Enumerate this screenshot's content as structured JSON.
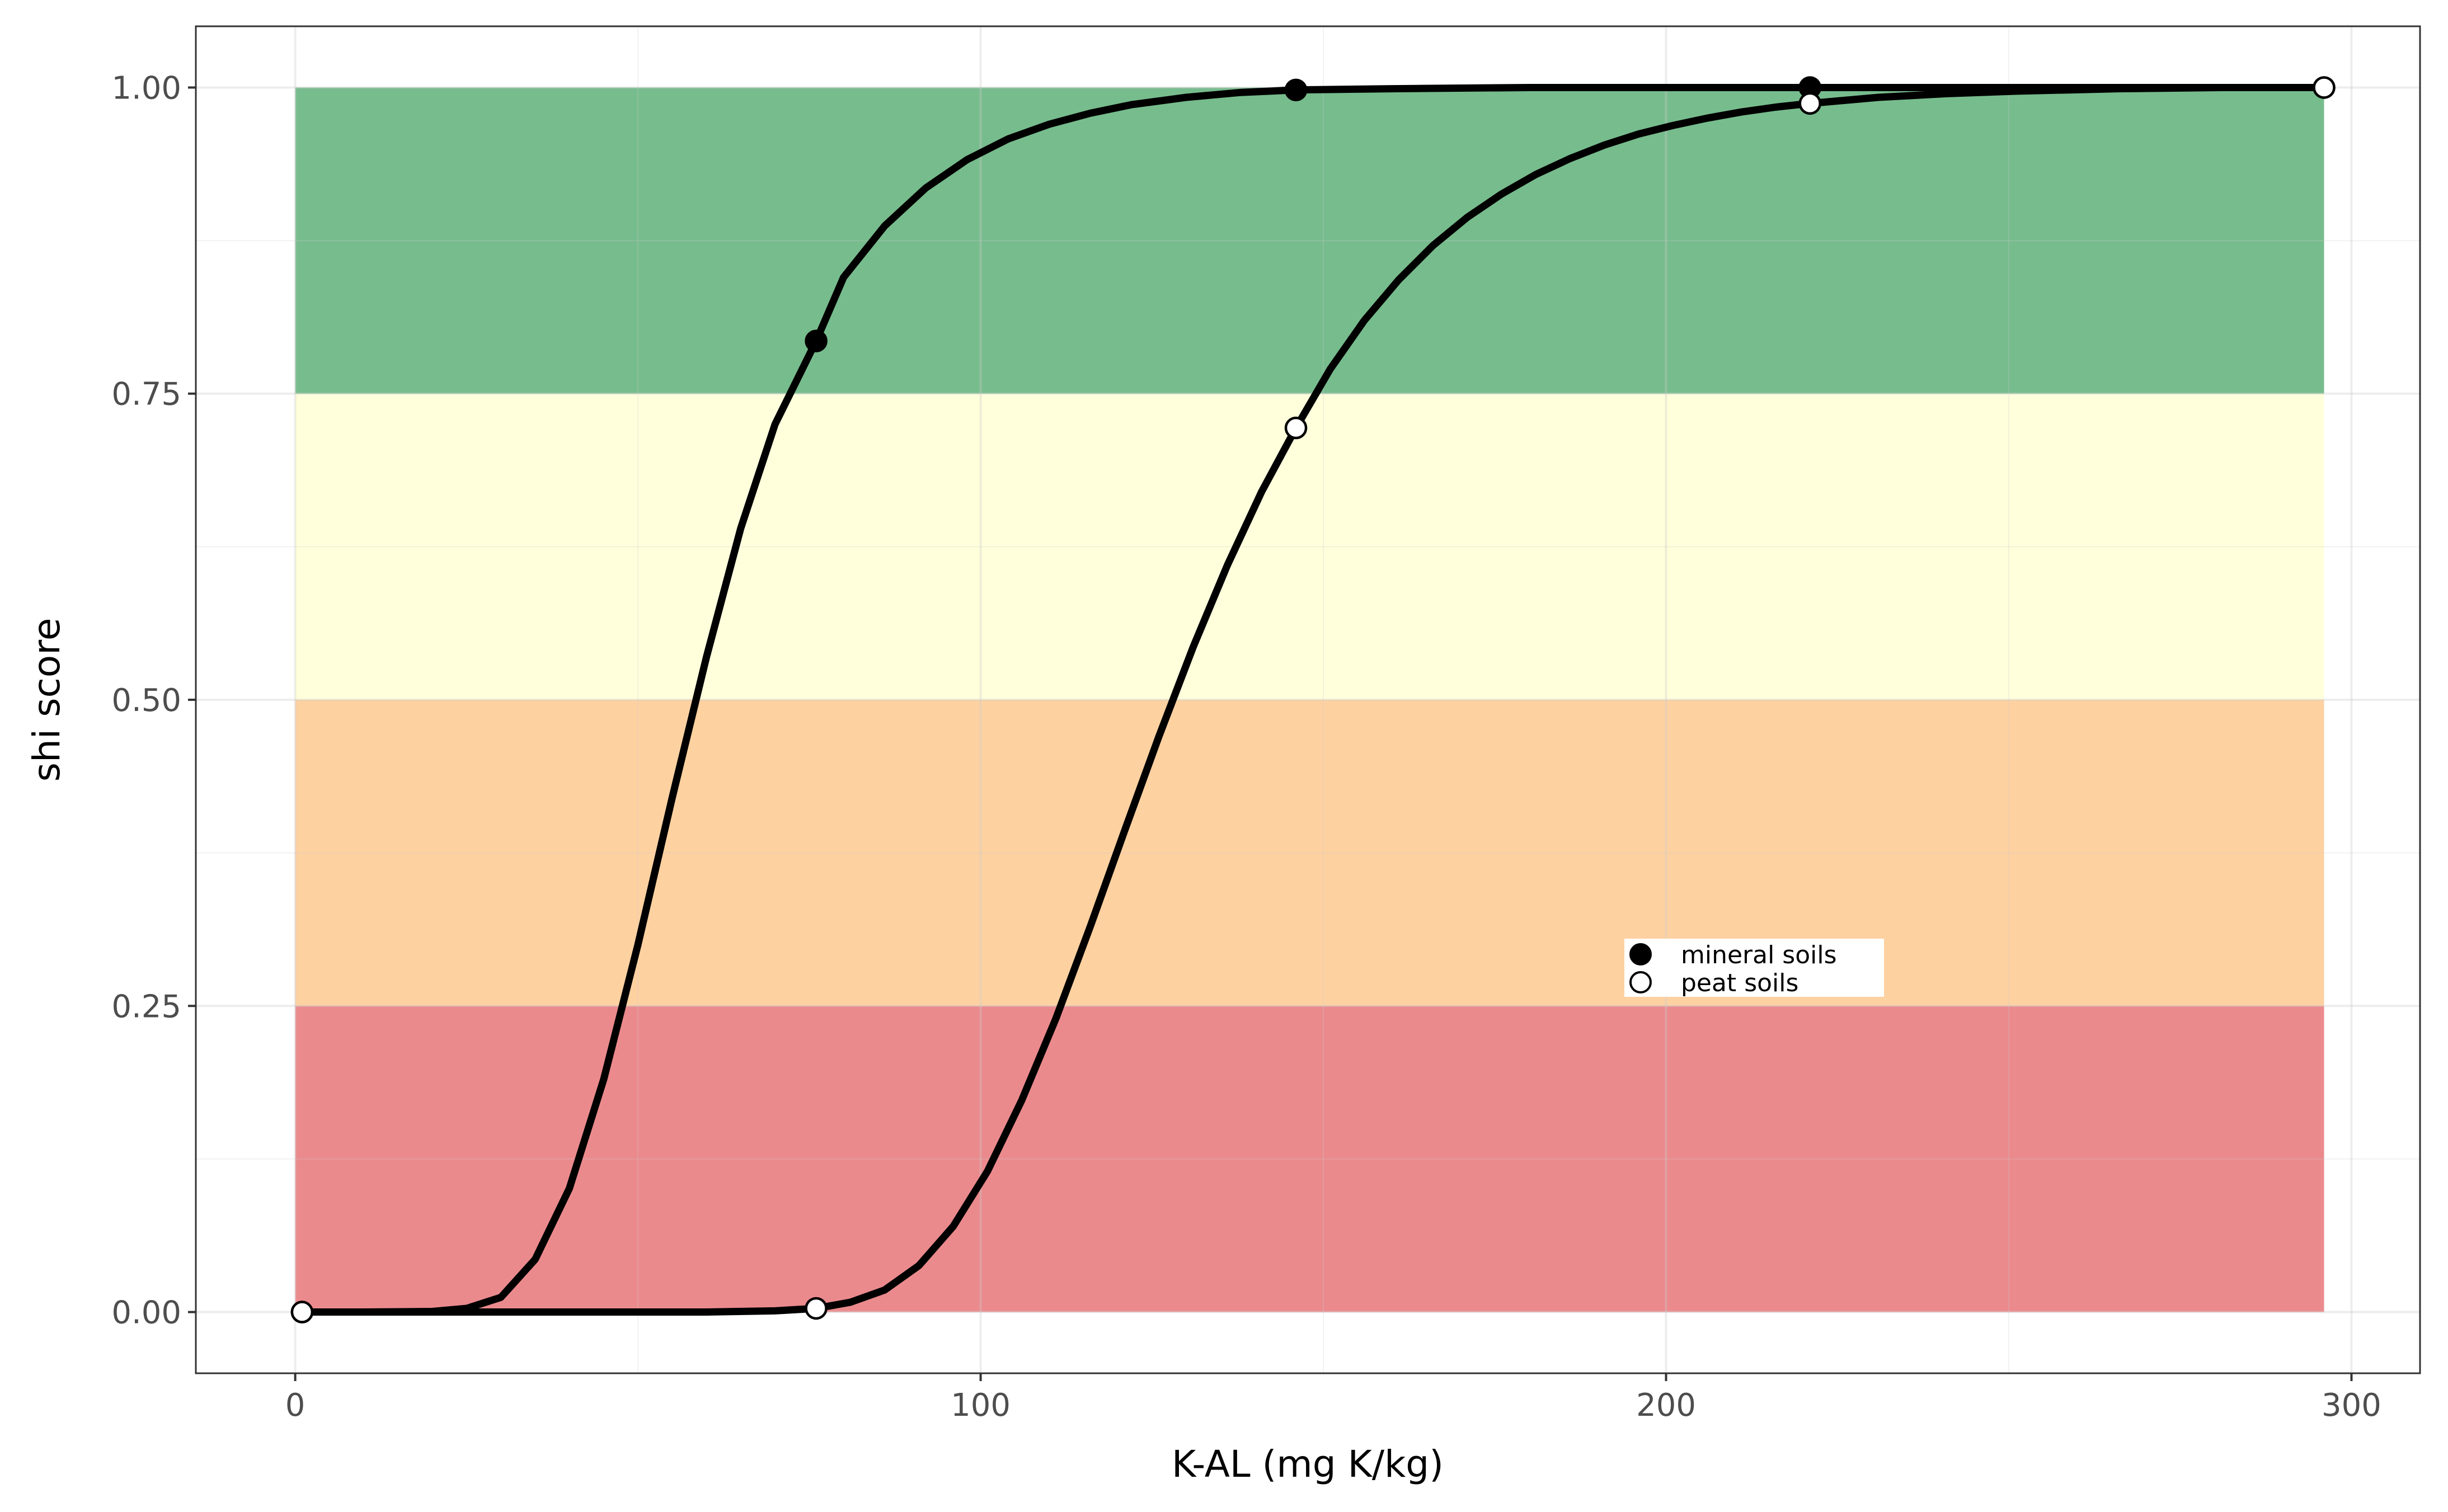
{
  "chart_data": {
    "type": "line",
    "title": "",
    "xlabel": "K-AL (mg K/kg)",
    "ylabel": "shi score",
    "xlim": [
      -14.5,
      310
    ],
    "ylim": [
      -0.05,
      1.05
    ],
    "x_ticks": [
      0,
      100,
      200,
      300
    ],
    "y_ticks": [
      0.0,
      0.25,
      0.5,
      0.75,
      1.0
    ],
    "x_tick_labels": [
      "0",
      "100",
      "200",
      "300"
    ],
    "y_tick_labels": [
      "0.00",
      "0.25",
      "0.50",
      "0.75",
      "1.00"
    ],
    "grid": true,
    "legend_position": "inside-lower-right",
    "bands": [
      {
        "x0": 0,
        "x1": 296,
        "y0": 0.0,
        "y1": 0.25,
        "color": "#e04b50"
      },
      {
        "x0": 0,
        "x1": 296,
        "y0": 0.25,
        "y1": 0.5,
        "color": "#fdb96e"
      },
      {
        "x0": 0,
        "x1": 296,
        "y0": 0.5,
        "y1": 0.75,
        "color": "#ffffc9"
      },
      {
        "x0": 0,
        "x1": 296,
        "y0": 0.75,
        "y1": 1.0,
        "color": "#2e9850"
      }
    ],
    "series": [
      {
        "name": "mineral soils",
        "marker": "filled",
        "points": [
          {
            "x": 1,
            "y": 0.0
          },
          {
            "x": 76,
            "y": 0.793
          },
          {
            "x": 146,
            "y": 0.998
          },
          {
            "x": 221,
            "y": 1.0
          },
          {
            "x": 296,
            "y": 1.0
          }
        ],
        "curve": [
          {
            "x": 0,
            "y": 0.0
          },
          {
            "x": 10,
            "y": 0.0
          },
          {
            "x": 20,
            "y": 0.0005
          },
          {
            "x": 25,
            "y": 0.003
          },
          {
            "x": 30,
            "y": 0.012
          },
          {
            "x": 35,
            "y": 0.043
          },
          {
            "x": 40,
            "y": 0.101
          },
          {
            "x": 45,
            "y": 0.19
          },
          {
            "x": 50,
            "y": 0.3
          },
          {
            "x": 55,
            "y": 0.42
          },
          {
            "x": 60,
            "y": 0.535
          },
          {
            "x": 65,
            "y": 0.64
          },
          {
            "x": 70,
            "y": 0.725
          },
          {
            "x": 76,
            "y": 0.793
          },
          {
            "x": 80,
            "y": 0.845
          },
          {
            "x": 86,
            "y": 0.887
          },
          {
            "x": 92,
            "y": 0.918
          },
          {
            "x": 98,
            "y": 0.941
          },
          {
            "x": 104,
            "y": 0.958
          },
          {
            "x": 110,
            "y": 0.97
          },
          {
            "x": 116,
            "y": 0.979
          },
          {
            "x": 122,
            "y": 0.986
          },
          {
            "x": 130,
            "y": 0.992
          },
          {
            "x": 138,
            "y": 0.996
          },
          {
            "x": 146,
            "y": 0.998
          },
          {
            "x": 160,
            "y": 0.999
          },
          {
            "x": 180,
            "y": 1.0
          },
          {
            "x": 221,
            "y": 1.0
          },
          {
            "x": 296,
            "y": 1.0
          }
        ]
      },
      {
        "name": "peat soils",
        "marker": "open",
        "points": [
          {
            "x": 1,
            "y": 0.0
          },
          {
            "x": 76,
            "y": 0.003
          },
          {
            "x": 146,
            "y": 0.722
          },
          {
            "x": 221,
            "y": 0.987
          },
          {
            "x": 296,
            "y": 1.0
          }
        ],
        "curve": [
          {
            "x": 0,
            "y": 0.0
          },
          {
            "x": 60,
            "y": 0.0
          },
          {
            "x": 70,
            "y": 0.001
          },
          {
            "x": 76,
            "y": 0.003
          },
          {
            "x": 81,
            "y": 0.008
          },
          {
            "x": 86,
            "y": 0.018
          },
          {
            "x": 91,
            "y": 0.038
          },
          {
            "x": 96,
            "y": 0.07
          },
          {
            "x": 101,
            "y": 0.115
          },
          {
            "x": 106,
            "y": 0.173
          },
          {
            "x": 111,
            "y": 0.24
          },
          {
            "x": 116,
            "y": 0.315
          },
          {
            "x": 121,
            "y": 0.393
          },
          {
            "x": 126,
            "y": 0.47
          },
          {
            "x": 131,
            "y": 0.543
          },
          {
            "x": 136,
            "y": 0.61
          },
          {
            "x": 141,
            "y": 0.67
          },
          {
            "x": 146,
            "y": 0.722
          },
          {
            "x": 151,
            "y": 0.77
          },
          {
            "x": 156,
            "y": 0.81
          },
          {
            "x": 161,
            "y": 0.843
          },
          {
            "x": 166,
            "y": 0.871
          },
          {
            "x": 171,
            "y": 0.894
          },
          {
            "x": 176,
            "y": 0.913
          },
          {
            "x": 181,
            "y": 0.929
          },
          {
            "x": 186,
            "y": 0.942
          },
          {
            "x": 191,
            "y": 0.953
          },
          {
            "x": 196,
            "y": 0.962
          },
          {
            "x": 201,
            "y": 0.969
          },
          {
            "x": 206,
            "y": 0.975
          },
          {
            "x": 211,
            "y": 0.98
          },
          {
            "x": 216,
            "y": 0.984
          },
          {
            "x": 221,
            "y": 0.987
          },
          {
            "x": 231,
            "y": 0.992
          },
          {
            "x": 241,
            "y": 0.995
          },
          {
            "x": 251,
            "y": 0.997
          },
          {
            "x": 266,
            "y": 0.999
          },
          {
            "x": 281,
            "y": 1.0
          },
          {
            "x": 296,
            "y": 1.0
          }
        ]
      }
    ]
  }
}
